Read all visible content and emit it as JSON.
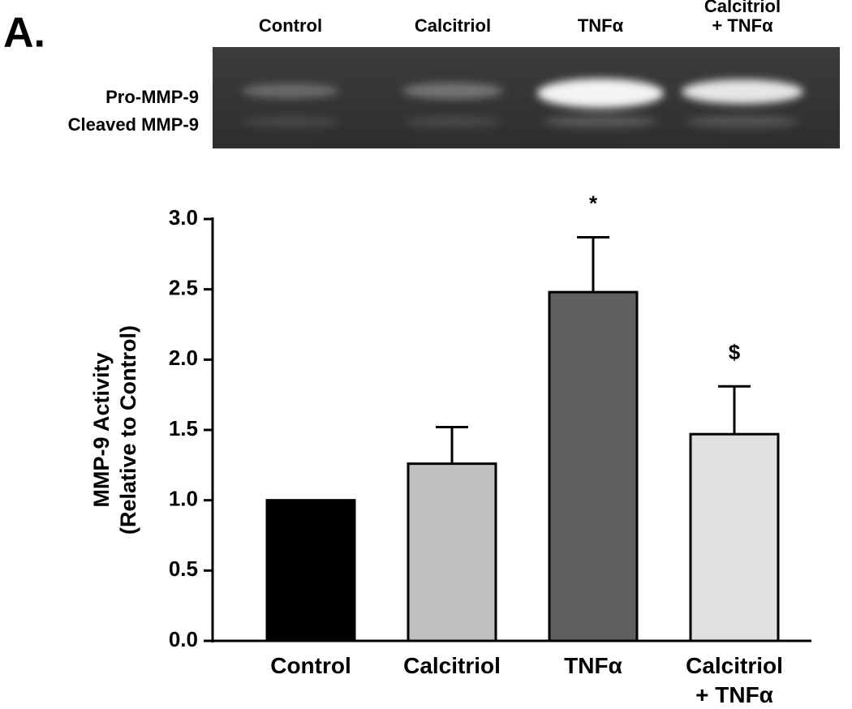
{
  "panel_label": "A.",
  "gel": {
    "lanes": [
      "Control",
      "Calcitriol",
      "TNFα",
      "Calcitriol\n+ TNFα"
    ],
    "bands": [
      "Pro-MMP-9",
      "Cleaved MMP-9"
    ]
  },
  "chart_data": {
    "type": "bar",
    "y_label": "MMP-9 Activity\n(Relative to Control)",
    "categories": [
      "Control",
      "Calcitriol",
      "TNFα",
      "Calcitriol\n+ TNFα"
    ],
    "values": [
      1.0,
      1.26,
      2.48,
      1.47
    ],
    "errors": [
      null,
      0.26,
      0.39,
      0.34
    ],
    "annotations": [
      null,
      null,
      "*",
      "$"
    ],
    "colors": [
      "#000000",
      "#c0c0c0",
      "#5f5f5f",
      "#e0e0e0"
    ],
    "ylim": [
      0,
      3
    ],
    "yticks": [
      {
        "value": 0,
        "label": "0.0"
      },
      0.5,
      {
        "value": 1,
        "label": "1.0"
      },
      1.5,
      {
        "value": 2,
        "label": "2.0"
      },
      2.5,
      {
        "value": 3,
        "label": "3.0"
      }
    ]
  }
}
